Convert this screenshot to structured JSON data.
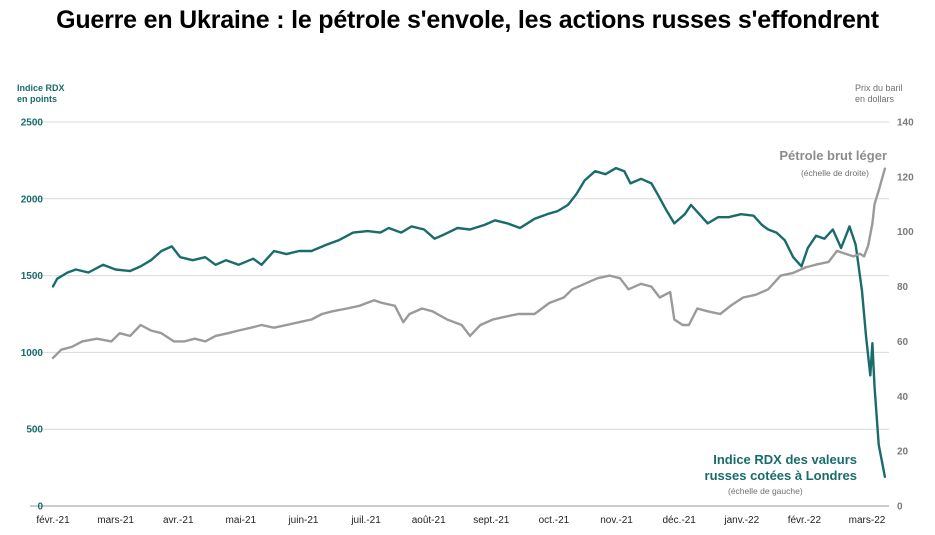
{
  "title": "Guerre en Ukraine : le pétrole s'envole, les actions russes s'effondrent",
  "left_axis": {
    "title_line1": "Indice RDX",
    "title_line2": "en points",
    "color": "#1a6b6b"
  },
  "right_axis": {
    "title_line1": "Prix du baril",
    "title_line2": "en dollars",
    "color": "#8c8c8c"
  },
  "annotations": {
    "oil_label": "Pétrole brut léger",
    "oil_note": "(échelle de droite)",
    "rdx_label_line1": "Indice RDX des valeurs",
    "rdx_label_line2": "russes cotées à Londres",
    "rdx_note": "(échelle de gauche)"
  },
  "chart_data": {
    "type": "line",
    "title": "Guerre en Ukraine : le pétrole s'envole, les actions russes s'effondrent",
    "x_axis": {
      "categories": [
        "févr.-21",
        "mars-21",
        "avr.-21",
        "mai-21",
        "juin-21",
        "juil.-21",
        "août-21",
        "sept.-21",
        "oct.-21",
        "nov.-21",
        "déc.-21",
        "janv.-22",
        "févr.-22",
        "mars-22"
      ],
      "range": [
        "2021-02-01",
        "2022-03-08"
      ]
    },
    "y_left": {
      "ylim": [
        0,
        2500
      ],
      "ticks": [
        0,
        500,
        1000,
        1500,
        2000,
        2500
      ]
    },
    "y_right": {
      "ylim": [
        0,
        140
      ],
      "ticks": [
        0,
        20,
        40,
        60,
        80,
        100,
        120,
        140
      ]
    },
    "grid": "horizontal",
    "series": [
      {
        "name": "Indice RDX des valeurs russes cotées à Londres",
        "axis": "left",
        "color": "#1a6b6b",
        "points": [
          [
            "2021-02-01",
            1430
          ],
          [
            "2021-02-03",
            1480
          ],
          [
            "2021-02-08",
            1520
          ],
          [
            "2021-02-12",
            1540
          ],
          [
            "2021-02-18",
            1520
          ],
          [
            "2021-02-25",
            1570
          ],
          [
            "2021-03-03",
            1540
          ],
          [
            "2021-03-10",
            1530
          ],
          [
            "2021-03-15",
            1560
          ],
          [
            "2021-03-20",
            1600
          ],
          [
            "2021-03-25",
            1660
          ],
          [
            "2021-03-30",
            1690
          ],
          [
            "2021-04-03",
            1620
          ],
          [
            "2021-04-09",
            1600
          ],
          [
            "2021-04-15",
            1620
          ],
          [
            "2021-04-20",
            1570
          ],
          [
            "2021-04-25",
            1600
          ],
          [
            "2021-05-01",
            1570
          ],
          [
            "2021-05-08",
            1610
          ],
          [
            "2021-05-12",
            1570
          ],
          [
            "2021-05-18",
            1660
          ],
          [
            "2021-05-24",
            1640
          ],
          [
            "2021-05-30",
            1660
          ],
          [
            "2021-06-05",
            1660
          ],
          [
            "2021-06-12",
            1700
          ],
          [
            "2021-06-18",
            1730
          ],
          [
            "2021-06-25",
            1780
          ],
          [
            "2021-07-02",
            1790
          ],
          [
            "2021-07-08",
            1780
          ],
          [
            "2021-07-12",
            1810
          ],
          [
            "2021-07-18",
            1780
          ],
          [
            "2021-07-23",
            1820
          ],
          [
            "2021-07-29",
            1800
          ],
          [
            "2021-08-03",
            1740
          ],
          [
            "2021-08-08",
            1770
          ],
          [
            "2021-08-14",
            1810
          ],
          [
            "2021-08-20",
            1800
          ],
          [
            "2021-08-27",
            1830
          ],
          [
            "2021-09-01",
            1860
          ],
          [
            "2021-09-07",
            1840
          ],
          [
            "2021-09-13",
            1810
          ],
          [
            "2021-09-20",
            1870
          ],
          [
            "2021-09-26",
            1900
          ],
          [
            "2021-10-01",
            1920
          ],
          [
            "2021-10-06",
            1960
          ],
          [
            "2021-10-10",
            2030
          ],
          [
            "2021-10-14",
            2120
          ],
          [
            "2021-10-19",
            2180
          ],
          [
            "2021-10-24",
            2160
          ],
          [
            "2021-10-29",
            2200
          ],
          [
            "2021-11-02",
            2180
          ],
          [
            "2021-11-05",
            2100
          ],
          [
            "2021-11-10",
            2130
          ],
          [
            "2021-11-15",
            2100
          ],
          [
            "2021-11-18",
            2030
          ],
          [
            "2021-11-22",
            1930
          ],
          [
            "2021-11-26",
            1840
          ],
          [
            "2021-12-01",
            1900
          ],
          [
            "2021-12-04",
            1960
          ],
          [
            "2021-12-08",
            1900
          ],
          [
            "2021-12-12",
            1840
          ],
          [
            "2021-12-17",
            1880
          ],
          [
            "2021-12-22",
            1880
          ],
          [
            "2021-12-28",
            1900
          ],
          [
            "2022-01-03",
            1890
          ],
          [
            "2022-01-07",
            1830
          ],
          [
            "2022-01-10",
            1800
          ],
          [
            "2022-01-14",
            1780
          ],
          [
            "2022-01-18",
            1730
          ],
          [
            "2022-01-22",
            1620
          ],
          [
            "2022-01-26",
            1560
          ],
          [
            "2022-01-29",
            1680
          ],
          [
            "2022-02-02",
            1760
          ],
          [
            "2022-02-06",
            1740
          ],
          [
            "2022-02-10",
            1800
          ],
          [
            "2022-02-14",
            1680
          ],
          [
            "2022-02-18",
            1820
          ],
          [
            "2022-02-21",
            1700
          ],
          [
            "2022-02-24",
            1400
          ],
          [
            "2022-02-26",
            1100
          ],
          [
            "2022-02-28",
            850
          ],
          [
            "2022-03-01",
            1060
          ],
          [
            "2022-03-02",
            780
          ],
          [
            "2022-03-04",
            400
          ],
          [
            "2022-03-07",
            190
          ]
        ]
      },
      {
        "name": "Pétrole brut léger",
        "axis": "right",
        "color": "#9a9a9a",
        "points": [
          [
            "2021-02-01",
            54
          ],
          [
            "2021-02-05",
            57
          ],
          [
            "2021-02-10",
            58
          ],
          [
            "2021-02-15",
            60
          ],
          [
            "2021-02-22",
            61
          ],
          [
            "2021-03-01",
            60
          ],
          [
            "2021-03-05",
            63
          ],
          [
            "2021-03-10",
            62
          ],
          [
            "2021-03-15",
            66
          ],
          [
            "2021-03-20",
            64
          ],
          [
            "2021-03-25",
            63
          ],
          [
            "2021-03-31",
            60
          ],
          [
            "2021-04-05",
            60
          ],
          [
            "2021-04-10",
            61
          ],
          [
            "2021-04-15",
            60
          ],
          [
            "2021-04-20",
            62
          ],
          [
            "2021-04-26",
            63
          ],
          [
            "2021-05-01",
            64
          ],
          [
            "2021-05-07",
            65
          ],
          [
            "2021-05-12",
            66
          ],
          [
            "2021-05-18",
            65
          ],
          [
            "2021-05-24",
            66
          ],
          [
            "2021-05-30",
            67
          ],
          [
            "2021-06-05",
            68
          ],
          [
            "2021-06-10",
            70
          ],
          [
            "2021-06-15",
            71
          ],
          [
            "2021-06-22",
            72
          ],
          [
            "2021-06-28",
            73
          ],
          [
            "2021-07-05",
            75
          ],
          [
            "2021-07-09",
            74
          ],
          [
            "2021-07-15",
            73
          ],
          [
            "2021-07-19",
            67
          ],
          [
            "2021-07-22",
            70
          ],
          [
            "2021-07-28",
            72
          ],
          [
            "2021-08-02",
            71
          ],
          [
            "2021-08-09",
            68
          ],
          [
            "2021-08-16",
            66
          ],
          [
            "2021-08-20",
            62
          ],
          [
            "2021-08-25",
            66
          ],
          [
            "2021-08-31",
            68
          ],
          [
            "2021-09-06",
            69
          ],
          [
            "2021-09-12",
            70
          ],
          [
            "2021-09-20",
            70
          ],
          [
            "2021-09-27",
            74
          ],
          [
            "2021-10-04",
            76
          ],
          [
            "2021-10-08",
            79
          ],
          [
            "2021-10-14",
            81
          ],
          [
            "2021-10-20",
            83
          ],
          [
            "2021-10-26",
            84
          ],
          [
            "2021-10-31",
            83
          ],
          [
            "2021-11-04",
            79
          ],
          [
            "2021-11-10",
            81
          ],
          [
            "2021-11-15",
            80
          ],
          [
            "2021-11-19",
            76
          ],
          [
            "2021-11-24",
            78
          ],
          [
            "2021-11-26",
            68
          ],
          [
            "2021-11-30",
            66
          ],
          [
            "2021-12-03",
            66
          ],
          [
            "2021-12-07",
            72
          ],
          [
            "2021-12-12",
            71
          ],
          [
            "2021-12-18",
            70
          ],
          [
            "2021-12-23",
            73
          ],
          [
            "2021-12-29",
            76
          ],
          [
            "2022-01-04",
            77
          ],
          [
            "2022-01-10",
            79
          ],
          [
            "2022-01-16",
            84
          ],
          [
            "2022-01-22",
            85
          ],
          [
            "2022-01-28",
            87
          ],
          [
            "2022-02-02",
            88
          ],
          [
            "2022-02-08",
            89
          ],
          [
            "2022-02-12",
            93
          ],
          [
            "2022-02-16",
            92
          ],
          [
            "2022-02-20",
            91
          ],
          [
            "2022-02-23",
            92
          ],
          [
            "2022-02-25",
            91
          ],
          [
            "2022-02-27",
            95
          ],
          [
            "2022-03-01",
            103
          ],
          [
            "2022-03-02",
            110
          ],
          [
            "2022-03-04",
            115
          ],
          [
            "2022-03-07",
            123
          ]
        ]
      }
    ]
  }
}
